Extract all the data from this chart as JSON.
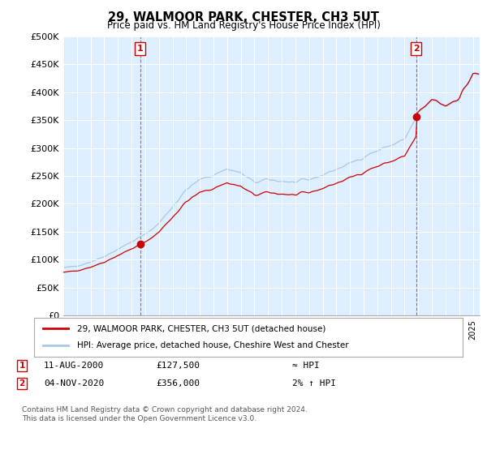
{
  "title": "29, WALMOOR PARK, CHESTER, CH3 5UT",
  "subtitle": "Price paid vs. HM Land Registry's House Price Index (HPI)",
  "ylim": [
    0,
    500000
  ],
  "yticks": [
    0,
    50000,
    100000,
    150000,
    200000,
    250000,
    300000,
    350000,
    400000,
    450000,
    500000
  ],
  "ytick_labels": [
    "£0",
    "£50K",
    "£100K",
    "£150K",
    "£200K",
    "£250K",
    "£300K",
    "£350K",
    "£400K",
    "£450K",
    "£500K"
  ],
  "sale1_date": 2000.62,
  "sale1_price": 127500,
  "sale2_date": 2020.84,
  "sale2_price": 356000,
  "hpi_line_color": "#a8c8e8",
  "sale_line_color": "#cc0000",
  "sale_marker_color": "#cc0000",
  "vline_color": "#dd4444",
  "background_color": "#ffffff",
  "plot_bg_color": "#ddeeff",
  "grid_color": "#ffffff",
  "legend_label_property": "29, WALMOOR PARK, CHESTER, CH3 5UT (detached house)",
  "legend_label_hpi": "HPI: Average price, detached house, Cheshire West and Chester",
  "annotation1_date": "11-AUG-2000",
  "annotation1_price": "£127,500",
  "annotation1_hpi": "≈ HPI",
  "annotation2_date": "04-NOV-2020",
  "annotation2_price": "£356,000",
  "annotation2_hpi": "2% ↑ HPI",
  "footer": "Contains HM Land Registry data © Crown copyright and database right 2024.\nThis data is licensed under the Open Government Licence v3.0.",
  "xmin": 1995.0,
  "xmax": 2025.5
}
